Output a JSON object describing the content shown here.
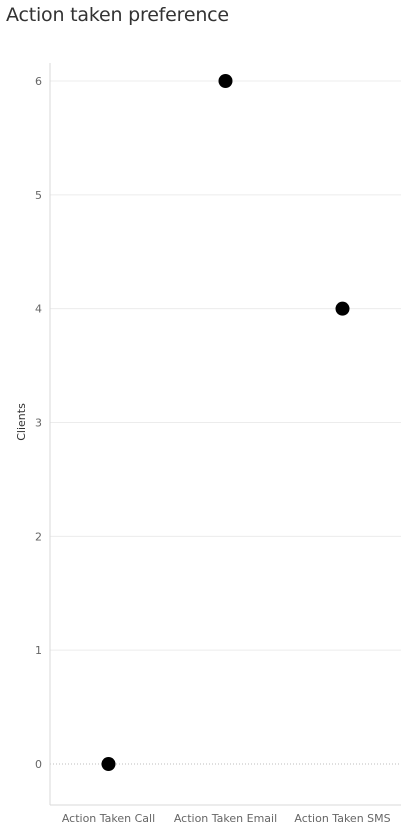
{
  "chart_data": {
    "type": "scatter",
    "title": "Action taken preference",
    "xlabel": "",
    "ylabel": "Clients",
    "categories": [
      "Action Taken Call",
      "Action Taken Email",
      "Action Taken SMS"
    ],
    "values": [
      0,
      6,
      4
    ],
    "ylim": [
      0,
      6
    ],
    "yticks": [
      0,
      1,
      2,
      3,
      4,
      5,
      6
    ],
    "grid": true,
    "colors": {
      "marker": "#000000",
      "grid": "#ececec",
      "axis": "#d9d9d9",
      "zero_line": "#bdbdbd",
      "tick_text": "#666666",
      "label_text": "#333333"
    }
  }
}
